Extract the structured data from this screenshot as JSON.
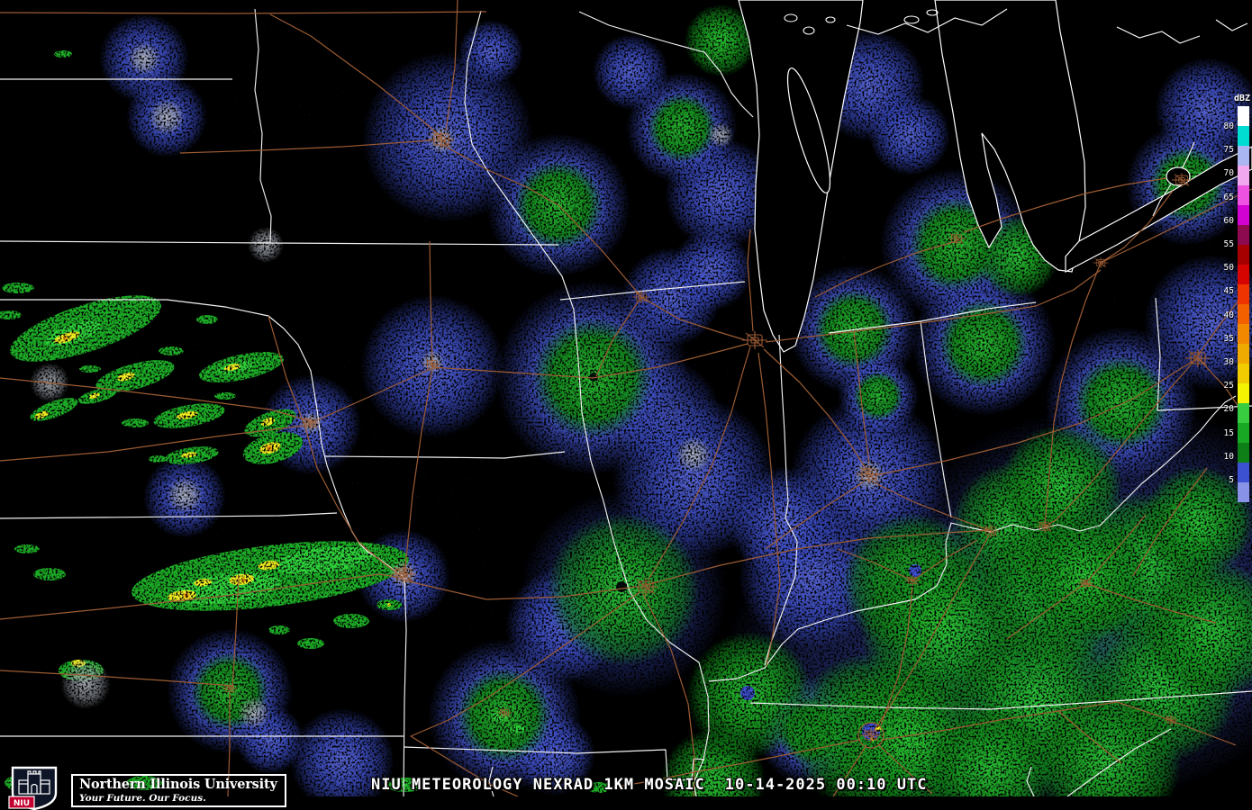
{
  "footer": {
    "title": "NIU METEOROLOGY NEXRAD 1KM MOSAIC",
    "timestamp": "10-14-2025 00:10 UTC"
  },
  "branding": {
    "institution": "Northern Illinois University",
    "tagline": "Your Future. Our Focus.",
    "shield_text": "NIU",
    "shield_red": "#c3002f"
  },
  "colorbar": {
    "unit": "dBZ",
    "tick_labels": [
      "80",
      "75",
      "70",
      "65",
      "60",
      "55",
      "50",
      "45",
      "40",
      "35",
      "30",
      "25",
      "20",
      "15",
      "10",
      "5"
    ],
    "segment_colors": [
      "#ffffff",
      "#00dcd2",
      "#aab6f2",
      "#f2a8ee",
      "#ee52e0",
      "#d202d2",
      "#8e0a50",
      "#a60000",
      "#d60400",
      "#ee3400",
      "#f26000",
      "#f28800",
      "#eeaa00",
      "#f0cc00",
      "#f4f402",
      "#38cc40",
      "#18a824",
      "#0e7e16",
      "#3c50d2",
      "#8892e6"
    ]
  },
  "map_colors": {
    "background": "#000000",
    "state_border": "#ffffff",
    "road": "#9d5c33",
    "water_outline": "#ffffff",
    "echo_low_blue": "#4152c8",
    "echo_moderate_green": "#18a824",
    "echo_heavy_yellow": "#f2ef20",
    "echo_intense_orange": "#f59a0c",
    "ground_clutter_gray": "#9aa0a8"
  }
}
